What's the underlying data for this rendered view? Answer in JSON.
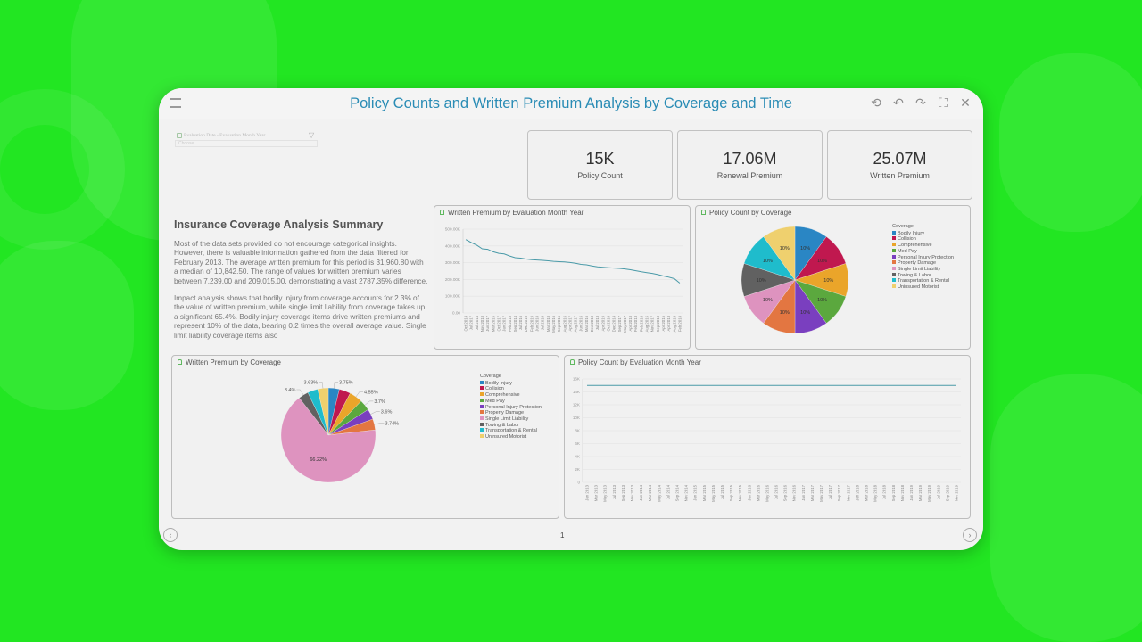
{
  "window": {
    "title": "Policy Counts and Written Premium Analysis by Coverage and Time",
    "toolbar_icons": [
      "refresh-icon",
      "undo-icon",
      "redo-icon",
      "fullscreen-icon",
      "close-icon"
    ],
    "toolbar_glyphs": [
      "⟲",
      "↶",
      "↷",
      "⛶",
      "✕"
    ],
    "page_number": "1",
    "prev_glyph": "‹",
    "next_glyph": "›"
  },
  "filter": {
    "label": "Evaluation Date - Evaluation Month Year",
    "placeholder": "Choose...",
    "funnel_glyph": "▽"
  },
  "kpis": [
    {
      "value": "15K",
      "label": "Policy Count"
    },
    {
      "value": "17.06M",
      "label": "Renewal Premium"
    },
    {
      "value": "25.07M",
      "label": "Written Premium"
    }
  ],
  "summary": {
    "title": "Insurance Coverage Analysis Summary",
    "paragraphs": [
      "Most of the data sets provided do not encourage categorical insights. However, there is valuable information gathered from the data filtered for February 2013. The average written premium for this period is 31,960.80 with a median of 10,842.50. The range of values for written premium varies between 7,239.00 and 209,015.00, demonstrating a vast 2787.35% difference.",
      "Impact analysis shows that bodily injury from coverage accounts for 2.3% of the value of written premium, while single limit liability from coverage takes up a significant 65.4%. Bodily injury coverage items drive written premiums and represent 10% of the data, bearing 0.2 times the overall average value. Single limit liability coverage items also"
    ]
  },
  "coverage_colors": {
    "Bodily Injury": "#2a86c4",
    "Collision": "#c0184f",
    "Comprehensive": "#eaa52a",
    "Med Pay": "#5ba83e",
    "Personal Injury Protection": "#7a3fbf",
    "Property Damage": "#e37641",
    "Single Limit Liability": "#de93bf",
    "Towing & Labor": "#616161",
    "Transportation & Rental": "#1fbccc",
    "Uninsured Motorist": "#efd06e"
  },
  "line_color": "#4a9aa8",
  "chart_data": [
    {
      "id": "written_premium_by_month",
      "type": "line",
      "title": "Written Premium by Evaluation Month Year",
      "xlabel": "",
      "ylabel": "",
      "ylim": [
        0,
        500000
      ],
      "yticks": [
        "0.00",
        "100.00K",
        "200.00K",
        "300.00K",
        "400.00K",
        "500.00K"
      ],
      "grid": true,
      "x": [
        "Oct 2014",
        "Jul 2017",
        "Jul 2014",
        "Nov 2018",
        "Jun 2017",
        "Mar 2015",
        "Oct 2017",
        "Jan 2017",
        "Feb 2015",
        "Sep 2014",
        "Jul 2016",
        "Dec 2016",
        "Feb 2019",
        "Jun 2018",
        "Jul 2018",
        "Mar 2018",
        "May 2016",
        "Sep 2016",
        "Aug 2016",
        "Apr 2017",
        "Aug 2017",
        "Jun 2016",
        "Mar 2016",
        "Dec 2018",
        "Jul 2013",
        "Apr 2019",
        "Oct 2018",
        "Dec 2014",
        "Sep 2017",
        "May 2017",
        "Apr 2018",
        "Feb 2013",
        "Feb 2016",
        "Aug 2015",
        "Nov 2017",
        "Sep 2013",
        "Apr 2015",
        "Apr 2013",
        "Aug 2013",
        "Feb 2018"
      ],
      "values": [
        438000,
        420000,
        405000,
        383000,
        380000,
        365000,
        356000,
        352000,
        340000,
        330000,
        327000,
        322000,
        318000,
        316000,
        314000,
        311000,
        308000,
        306000,
        304000,
        301000,
        297000,
        290000,
        287000,
        281000,
        275000,
        273000,
        270000,
        268000,
        266000,
        263000,
        258000,
        252000,
        246000,
        241000,
        236000,
        229000,
        221000,
        214000,
        205000,
        178000
      ]
    },
    {
      "id": "policy_count_by_coverage",
      "type": "pie",
      "title": "Policy Count by Coverage",
      "legend_title": "Coverage",
      "legend_position": "right",
      "categories": [
        "Bodily Injury",
        "Collision",
        "Comprehensive",
        "Med Pay",
        "Personal Injury Protection",
        "Property Damage",
        "Single Limit Liability",
        "Towing & Labor",
        "Transportation & Rental",
        "Uninsured Motorist"
      ],
      "values": [
        10,
        10,
        10,
        10,
        10,
        10,
        10,
        10,
        10,
        10
      ],
      "labels": [
        "10%",
        "10%",
        "10%",
        "10%",
        "10%",
        "10%",
        "10%",
        "10%",
        "10%",
        "10%"
      ]
    },
    {
      "id": "written_premium_by_coverage",
      "type": "pie",
      "title": "Written Premium by Coverage",
      "legend_title": "Coverage",
      "legend_position": "right",
      "categories": [
        "Bodily Injury",
        "Collision",
        "Comprehensive",
        "Med Pay",
        "Personal Injury Protection",
        "Property Damage",
        "Single Limit Liability",
        "Towing & Labor",
        "Transportation & Rental",
        "Uninsured Motorist"
      ],
      "values": [
        3.75,
        3.9,
        4.55,
        3.7,
        3.6,
        3.74,
        66.22,
        3.4,
        3.5,
        3.63
      ],
      "labels": [
        "3.75%",
        "",
        "4.55%",
        "3.7%",
        "3.6%",
        "3.74%",
        "66.22%",
        "3.4%",
        "",
        "3.63%"
      ]
    },
    {
      "id": "policy_count_by_month",
      "type": "line",
      "title": "Policy Count by Evaluation Month Year",
      "xlabel": "",
      "ylabel": "",
      "ylim": [
        0,
        16000
      ],
      "yticks": [
        "0",
        "2K",
        "4K",
        "6K",
        "8K",
        "10K",
        "12K",
        "14K",
        "16K"
      ],
      "grid": true,
      "x": [
        "Jan 2013",
        "Mar 2013",
        "May 2013",
        "Jul 2013",
        "Sep 2013",
        "Nov 2013",
        "Jan 2014",
        "Mar 2014",
        "May 2014",
        "Jul 2014",
        "Sep 2014",
        "Nov 2014",
        "Jan 2015",
        "Mar 2015",
        "May 2015",
        "Jul 2015",
        "Sep 2015",
        "Nov 2015",
        "Jan 2016",
        "Mar 2016",
        "May 2016",
        "Jul 2016",
        "Sep 2016",
        "Nov 2016",
        "Jan 2017",
        "Mar 2017",
        "May 2017",
        "Jul 2017",
        "Sep 2017",
        "Nov 2017",
        "Jan 2018",
        "Mar 2018",
        "May 2018",
        "Jul 2018",
        "Sep 2018",
        "Nov 2018",
        "Jan 2019",
        "Mar 2019",
        "May 2019",
        "Jul 2019",
        "Sep 2019",
        "Nov 2019"
      ],
      "values": [
        15000,
        15000,
        15000,
        15000,
        15000,
        15000,
        15000,
        15000,
        15000,
        15000,
        15000,
        15000,
        15000,
        15000,
        15000,
        15000,
        15000,
        15000,
        15000,
        15000,
        15000,
        15000,
        15000,
        15000,
        15000,
        15000,
        15000,
        15000,
        15000,
        15000,
        15000,
        15000,
        15000,
        15000,
        15000,
        15000,
        15000,
        15000,
        15000,
        15000,
        15000,
        15000
      ]
    }
  ]
}
